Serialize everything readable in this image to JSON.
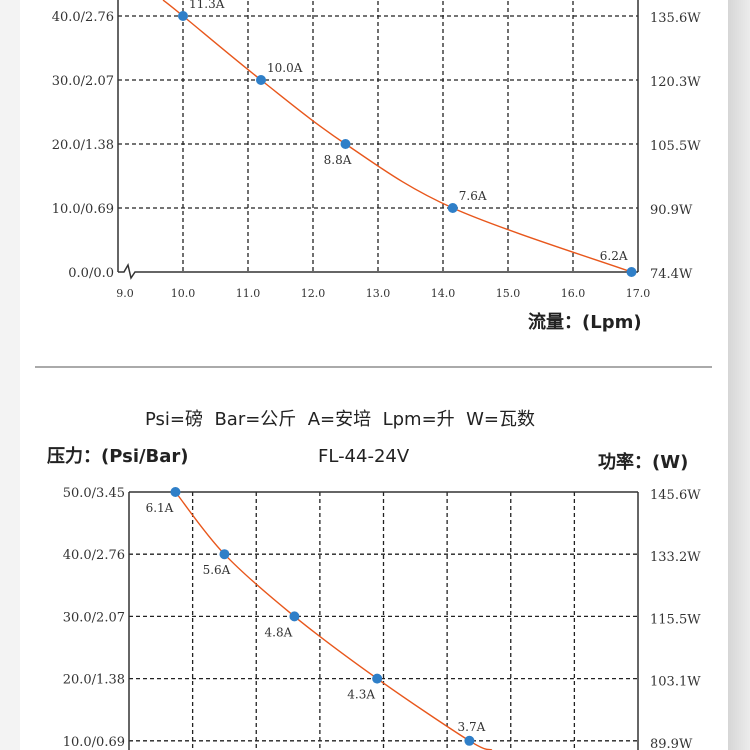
{
  "legend_text": "Psi=磅  Bar=公斤  A=安培  Lpm=升  W=瓦数",
  "colors": {
    "curve": "#e8571c",
    "point": "#2f7fc8",
    "grid": "#222222"
  },
  "chart_data": [
    {
      "type": "line",
      "title": "",
      "xlabel": "流量：(Lpm)",
      "ylabel": "",
      "xlim": [
        9.0,
        17.0
      ],
      "ylim": [
        0.0,
        50.0
      ],
      "x_ticks": [
        "9.0",
        "10.0",
        "11.0",
        "12.0",
        "13.0",
        "14.0",
        "15.0",
        "16.0",
        "17.0"
      ],
      "y_ticks": [
        {
          "value": 0,
          "label": "0.0/0.0",
          "right": "74.4W"
        },
        {
          "value": 10,
          "label": "10.0/0.69",
          "right": "90.9W"
        },
        {
          "value": 20,
          "label": "20.0/1.38",
          "right": "105.5W"
        },
        {
          "value": 30,
          "label": "30.0/2.07",
          "right": "120.3W"
        },
        {
          "value": 40,
          "label": "40.0/2.76",
          "right": "135.6W"
        }
      ],
      "grid": true,
      "series": [
        {
          "name": "pressure",
          "points": [
            {
              "x": 10.0,
              "y": 40,
              "label": "11.3A",
              "pos": "above-right"
            },
            {
              "x": 11.2,
              "y": 30,
              "label": "10.0A",
              "pos": "above-right"
            },
            {
              "x": 12.5,
              "y": 20,
              "label": "8.8A",
              "pos": "below"
            },
            {
              "x": 14.15,
              "y": 10,
              "label": "7.6A",
              "pos": "above-right"
            },
            {
              "x": 16.9,
              "y": 0,
              "label": "6.2A",
              "pos": "above-left"
            }
          ]
        }
      ]
    },
    {
      "type": "line",
      "title": "FL-44-24V",
      "ylabel": "压力：(Psi/Bar)",
      "y2label": "功率：(W)",
      "xlim": [
        9.0,
        17.0
      ],
      "ylim": [
        0.0,
        50.0
      ],
      "y_ticks": [
        {
          "value": 50,
          "label": "50.0/3.45",
          "right": "145.6W"
        },
        {
          "value": 40,
          "label": "40.0/2.76",
          "right": "133.2W"
        },
        {
          "value": 30,
          "label": "30.0/2.07",
          "right": "115.5W"
        },
        {
          "value": 20,
          "label": "20.0/1.38",
          "right": "103.1W"
        },
        {
          "value": 10,
          "label": "10.0/0.69",
          "right": "89.9W"
        }
      ],
      "grid": true,
      "series": [
        {
          "name": "pressure",
          "points": [
            {
              "x": 9.73,
              "y": 50,
              "label": "6.1A",
              "pos": "below-left"
            },
            {
              "x": 10.5,
              "y": 40,
              "label": "5.6A",
              "pos": "below"
            },
            {
              "x": 11.6,
              "y": 30,
              "label": "4.8A",
              "pos": "below-left"
            },
            {
              "x": 12.9,
              "y": 20,
              "label": "4.3A",
              "pos": "below-left"
            },
            {
              "x": 14.35,
              "y": 10,
              "label": "3.7A",
              "pos": "above"
            }
          ]
        }
      ]
    }
  ]
}
